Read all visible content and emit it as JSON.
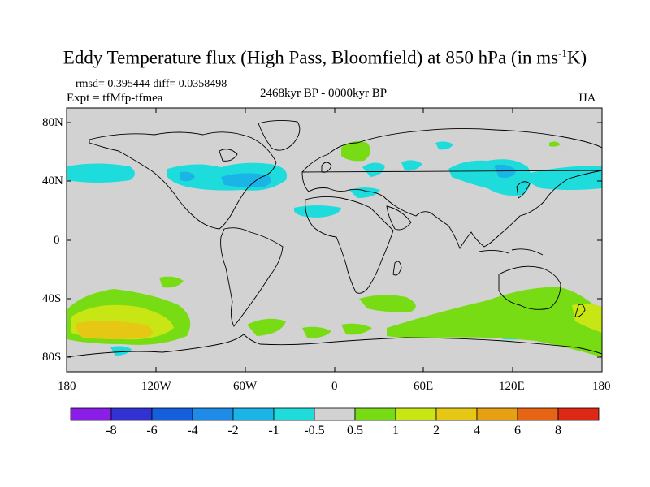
{
  "title": {
    "main": "Eddy Temperature flux (High Pass, Bloomfield) at 850 hPa (in ms",
    "sup": "-1",
    "tail": "K)"
  },
  "stats": {
    "rmsd_label": "rmsd=",
    "rmsd": "0.395444",
    "diff_label": "diff=",
    "diff": "0.0358498"
  },
  "subtitles": {
    "experiment": "Expt = tfMfp-tfmea",
    "period": "2468kyr BP - 0000kyr BP",
    "season": "JJA"
  },
  "axes": {
    "lat_labels": [
      "80N",
      "40N",
      "0",
      "40S",
      "80S"
    ],
    "lon_labels": [
      "180",
      "120W",
      "60W",
      "0",
      "60E",
      "120E",
      "180"
    ]
  },
  "colorbar": {
    "labels": [
      "-8",
      "-6",
      "-4",
      "-2",
      "-1",
      "-0.5",
      "0.5",
      "1",
      "2",
      "4",
      "6",
      "8"
    ],
    "colors": [
      "#8b1ee6",
      "#3232d2",
      "#1460dc",
      "#1e8ce6",
      "#1ab4e6",
      "#1edcdc",
      "#d2d2d2",
      "#78dc14",
      "#c8e614",
      "#e6c814",
      "#e6a014",
      "#e66414",
      "#dc2814"
    ]
  },
  "map": {
    "land_color": "#d2d2d2",
    "coast_color": "#000000"
  }
}
